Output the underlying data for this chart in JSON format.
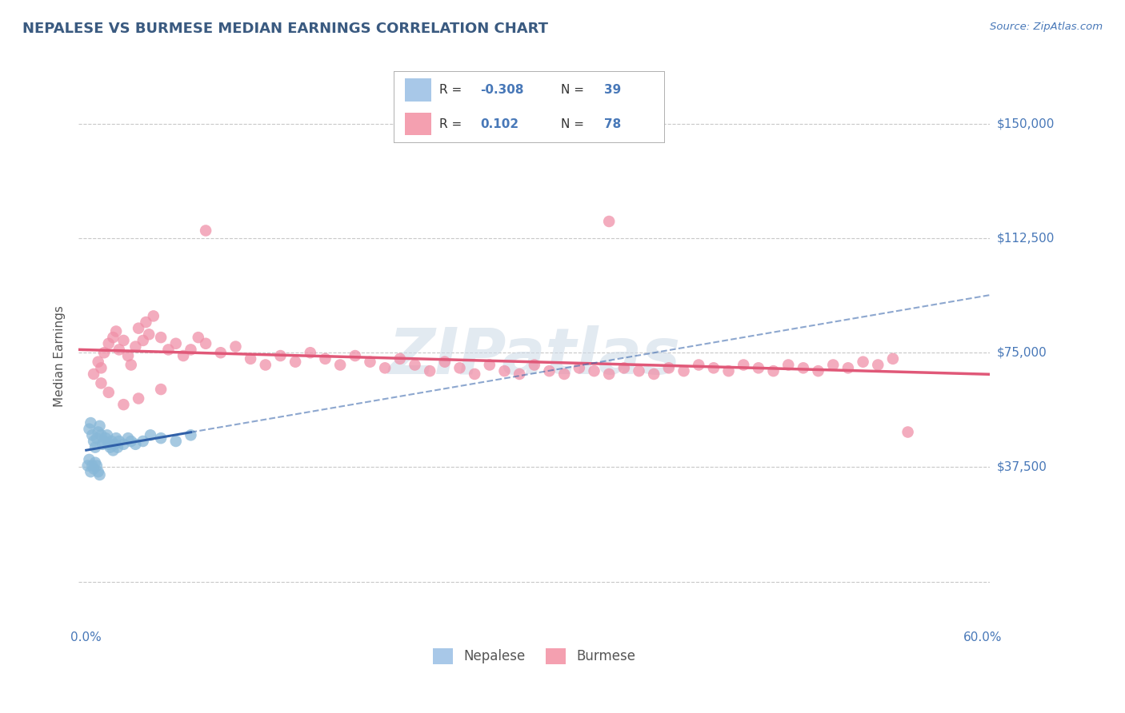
{
  "title": "NEPALESE VS BURMESE MEDIAN EARNINGS CORRELATION CHART",
  "source_text": "Source: ZipAtlas.com",
  "ylabel": "Median Earnings",
  "xlim": [
    -0.005,
    0.605
  ],
  "ylim": [
    -15000,
    162500
  ],
  "yticks": [
    0,
    37500,
    75000,
    112500,
    150000
  ],
  "ytick_labels": [
    "",
    "$37,500",
    "$75,000",
    "$112,500",
    "$150,000"
  ],
  "xtick_positions": [
    0.0,
    0.6
  ],
  "xtick_labels": [
    "0.0%",
    "60.0%"
  ],
  "nepalese_R": -0.308,
  "nepalese_N": 39,
  "burmese_R": 0.102,
  "burmese_N": 78,
  "nepalese_color": "#a8c8e8",
  "burmese_color": "#f4a0b0",
  "nepalese_line_color": "#3060a8",
  "burmese_line_color": "#e05878",
  "nepalese_dot_color": "#88b8d8",
  "burmese_dot_color": "#f090a8",
  "grid_color": "#c8c8c8",
  "title_color": "#3a5a80",
  "axis_label_color": "#555555",
  "tick_color": "#4878b8",
  "watermark_color": "#d0dce8",
  "background_color": "#ffffff",
  "nepalese_scatter_x": [
    0.002,
    0.003,
    0.004,
    0.005,
    0.006,
    0.007,
    0.008,
    0.009,
    0.01,
    0.011,
    0.012,
    0.013,
    0.014,
    0.015,
    0.016,
    0.017,
    0.018,
    0.019,
    0.02,
    0.021,
    0.022,
    0.025,
    0.028,
    0.03,
    0.033,
    0.038,
    0.043,
    0.05,
    0.06,
    0.07,
    0.001,
    0.002,
    0.003,
    0.004,
    0.005,
    0.006,
    0.007,
    0.008,
    0.009
  ],
  "nepalese_scatter_y": [
    50000,
    52000,
    48000,
    46000,
    44000,
    47000,
    49000,
    51000,
    48000,
    45000,
    46000,
    47000,
    48000,
    45000,
    44000,
    46000,
    43000,
    45000,
    47000,
    44000,
    46000,
    45000,
    47000,
    46000,
    45000,
    46000,
    48000,
    47000,
    46000,
    48000,
    38000,
    40000,
    36000,
    38000,
    37000,
    39000,
    38000,
    36000,
    35000
  ],
  "burmese_scatter_x": [
    0.005,
    0.008,
    0.01,
    0.012,
    0.015,
    0.018,
    0.02,
    0.022,
    0.025,
    0.028,
    0.03,
    0.033,
    0.035,
    0.038,
    0.04,
    0.042,
    0.045,
    0.05,
    0.055,
    0.06,
    0.065,
    0.07,
    0.075,
    0.08,
    0.09,
    0.1,
    0.11,
    0.12,
    0.13,
    0.14,
    0.15,
    0.16,
    0.17,
    0.18,
    0.19,
    0.2,
    0.21,
    0.22,
    0.23,
    0.24,
    0.25,
    0.26,
    0.27,
    0.28,
    0.29,
    0.3,
    0.31,
    0.32,
    0.33,
    0.34,
    0.35,
    0.36,
    0.37,
    0.38,
    0.39,
    0.4,
    0.41,
    0.42,
    0.43,
    0.44,
    0.45,
    0.46,
    0.47,
    0.48,
    0.49,
    0.5,
    0.51,
    0.52,
    0.53,
    0.54,
    0.55,
    0.01,
    0.015,
    0.025,
    0.035,
    0.05,
    0.08,
    0.35
  ],
  "burmese_scatter_y": [
    68000,
    72000,
    70000,
    75000,
    78000,
    80000,
    82000,
    76000,
    79000,
    74000,
    71000,
    77000,
    83000,
    79000,
    85000,
    81000,
    87000,
    80000,
    76000,
    78000,
    74000,
    76000,
    80000,
    78000,
    75000,
    77000,
    73000,
    71000,
    74000,
    72000,
    75000,
    73000,
    71000,
    74000,
    72000,
    70000,
    73000,
    71000,
    69000,
    72000,
    70000,
    68000,
    71000,
    69000,
    68000,
    71000,
    69000,
    68000,
    70000,
    69000,
    68000,
    70000,
    69000,
    68000,
    70000,
    69000,
    71000,
    70000,
    69000,
    71000,
    70000,
    69000,
    71000,
    70000,
    69000,
    71000,
    70000,
    72000,
    71000,
    73000,
    49000,
    65000,
    62000,
    58000,
    60000,
    63000,
    115000,
    118000
  ]
}
